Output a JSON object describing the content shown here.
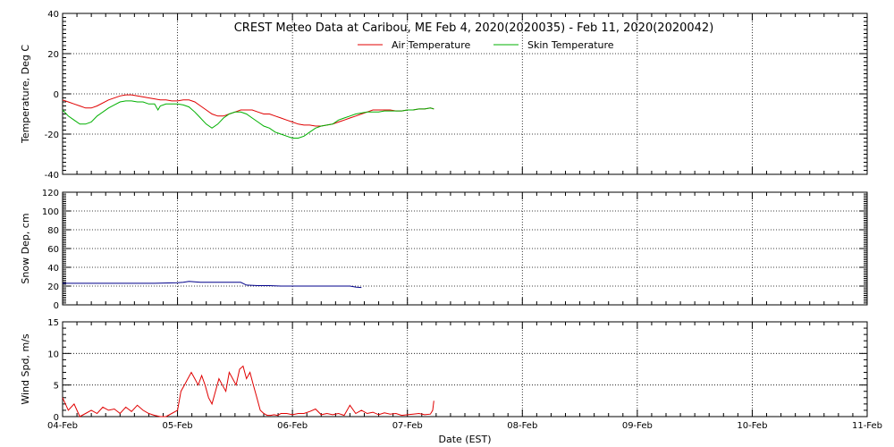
{
  "chart_data": {
    "type": "line",
    "title": "CREST Meteo Data at Caribou, ME   Feb  4, 2020(2020035) - Feb 11, 2020(2020042)",
    "xlabel": "Date (EST)",
    "x_ticks": [
      "04-Feb",
      "05-Feb",
      "06-Feb",
      "07-Feb",
      "08-Feb",
      "09-Feb",
      "10-Feb",
      "11-Feb"
    ],
    "xlim": [
      0,
      7
    ],
    "grid": true,
    "legend_position": "top-center",
    "panels": [
      {
        "ylabel": "Temperature, Deg C",
        "ylim": [
          -40,
          40
        ],
        "y_ticks": [
          -40,
          -20,
          0,
          20,
          40
        ],
        "series": [
          {
            "name": "Air Temperature",
            "color": "#e00000",
            "x": [
              0.0,
              0.05,
              0.1,
              0.15,
              0.2,
              0.25,
              0.3,
              0.4,
              0.5,
              0.55,
              0.6,
              0.65,
              0.7,
              0.75,
              0.8,
              0.85,
              0.9,
              0.95,
              1.0,
              1.05,
              1.1,
              1.15,
              1.2,
              1.25,
              1.3,
              1.35,
              1.4,
              1.45,
              1.5,
              1.55,
              1.6,
              1.65,
              1.7,
              1.75,
              1.8,
              1.85,
              1.9,
              1.95,
              2.0,
              2.05,
              2.1,
              2.15,
              2.2,
              2.25,
              2.3,
              2.35,
              2.4,
              2.45,
              2.5,
              2.55,
              2.6,
              2.65,
              2.7,
              2.75,
              2.8,
              2.85,
              2.9,
              2.95,
              3.0,
              3.05,
              3.1,
              3.15,
              3.2,
              3.23
            ],
            "values": [
              -3,
              -4,
              -5,
              -6,
              -7,
              -7,
              -6,
              -3,
              -1,
              -0.5,
              -0.5,
              -1,
              -1.5,
              -2,
              -2.5,
              -3,
              -3,
              -3.5,
              -3.5,
              -3,
              -3,
              -4,
              -6,
              -8,
              -10,
              -11,
              -11,
              -10,
              -9,
              -8,
              -8,
              -8,
              -9,
              -10,
              -10,
              -11,
              -12,
              -13,
              -14,
              -15,
              -15.5,
              -15.5,
              -16,
              -16,
              -15.5,
              -15,
              -14,
              -13,
              -12,
              -11,
              -10,
              -9,
              -8,
              -8,
              -8,
              -8,
              -8.5,
              -8.5,
              -8,
              -8,
              -7.5,
              -7.5,
              -7,
              -7.5
            ]
          },
          {
            "name": "Skin Temperature",
            "color": "#00b000",
            "x": [
              0.0,
              0.05,
              0.1,
              0.15,
              0.2,
              0.25,
              0.3,
              0.4,
              0.5,
              0.55,
              0.6,
              0.65,
              0.7,
              0.75,
              0.8,
              0.83,
              0.85,
              0.9,
              0.95,
              1.0,
              1.05,
              1.1,
              1.15,
              1.2,
              1.25,
              1.3,
              1.35,
              1.4,
              1.45,
              1.5,
              1.55,
              1.6,
              1.65,
              1.7,
              1.75,
              1.8,
              1.85,
              1.9,
              1.95,
              2.0,
              2.05,
              2.1,
              2.15,
              2.2,
              2.25,
              2.3,
              2.35,
              2.4,
              2.45,
              2.5,
              2.55,
              2.6,
              2.65,
              2.7,
              2.75,
              2.8,
              2.85,
              2.9,
              2.95,
              3.0,
              3.05,
              3.1,
              3.15,
              3.2,
              3.23
            ],
            "values": [
              -8,
              -11,
              -13,
              -15,
              -15,
              -14,
              -11,
              -7,
              -4,
              -3.5,
              -3.5,
              -4,
              -4,
              -5,
              -5,
              -8,
              -6,
              -5,
              -5,
              -5,
              -5.5,
              -6.5,
              -9,
              -12,
              -15,
              -17,
              -15,
              -12,
              -10,
              -9,
              -9,
              -10,
              -12,
              -14,
              -16,
              -17,
              -19,
              -20,
              -21,
              -22,
              -22,
              -21,
              -19,
              -17,
              -16,
              -15.5,
              -15,
              -13,
              -12,
              -11,
              -10,
              -9.5,
              -9,
              -9,
              -9,
              -8.5,
              -8.5,
              -8.5,
              -8.5,
              -8,
              -8,
              -7.5,
              -7.5,
              -7,
              -7.5
            ]
          }
        ]
      },
      {
        "ylabel": "Snow Dep, cm",
        "ylim": [
          0,
          120
        ],
        "y_ticks": [
          0,
          20,
          40,
          60,
          80,
          100,
          120
        ],
        "series": [
          {
            "color": "#00008b",
            "x": [
              0.0,
              0.2,
              0.4,
              0.6,
              0.8,
              1.0,
              1.05,
              1.1,
              1.2,
              1.3,
              1.4,
              1.5,
              1.55,
              1.6,
              1.7,
              1.8,
              1.9,
              2.0,
              2.1,
              2.2,
              2.3,
              2.4,
              2.5,
              2.55,
              2.6
            ],
            "values": [
              23,
              23,
              23,
              23,
              23,
              23.5,
              24,
              25,
              24,
              24,
              24,
              24,
              24,
              21,
              20.5,
              20.5,
              20,
              20,
              20,
              20,
              20,
              20,
              20,
              19,
              18.5
            ]
          }
        ]
      },
      {
        "ylabel": "Wind Spd, m/s",
        "ylim": [
          0,
          15
        ],
        "y_ticks": [
          0,
          5,
          10,
          15
        ],
        "series": [
          {
            "color": "#e00000",
            "x": [
              0.0,
              0.05,
              0.1,
              0.15,
              0.2,
              0.25,
              0.3,
              0.35,
              0.4,
              0.45,
              0.5,
              0.55,
              0.6,
              0.65,
              0.7,
              0.75,
              0.8,
              0.85,
              0.9,
              0.95,
              1.0,
              1.03,
              1.06,
              1.09,
              1.12,
              1.15,
              1.18,
              1.21,
              1.24,
              1.27,
              1.3,
              1.33,
              1.36,
              1.39,
              1.42,
              1.45,
              1.48,
              1.51,
              1.54,
              1.57,
              1.6,
              1.63,
              1.66,
              1.69,
              1.72,
              1.75,
              1.78,
              1.81,
              1.84,
              1.87,
              1.9,
              1.95,
              2.0,
              2.05,
              2.1,
              2.15,
              2.2,
              2.25,
              2.3,
              2.35,
              2.4,
              2.45,
              2.5,
              2.55,
              2.6,
              2.65,
              2.7,
              2.75,
              2.8,
              2.85,
              2.9,
              2.95,
              3.0,
              3.05,
              3.1,
              3.15,
              3.2,
              3.22,
              3.23
            ],
            "values": [
              3,
              1,
              2,
              0,
              0.5,
              1,
              0.5,
              1.5,
              1,
              1.2,
              0.5,
              1.5,
              0.8,
              1.8,
              1,
              0.5,
              0.2,
              0,
              0,
              0.5,
              1,
              4,
              5,
              6,
              7,
              6,
              5,
              6.5,
              5,
              3,
              2,
              4,
              6,
              5,
              4,
              7,
              6,
              5,
              7.5,
              8,
              6,
              7,
              5,
              3,
              1,
              0.5,
              0.2,
              0.2,
              0.3,
              0.2,
              0.5,
              0.5,
              0.3,
              0.5,
              0.5,
              0.8,
              1.2,
              0.3,
              0.5,
              0.3,
              0.5,
              0.2,
              1.8,
              0.5,
              1,
              0.5,
              0.7,
              0.3,
              0.6,
              0.4,
              0.5,
              0.2,
              0.3,
              0.4,
              0.5,
              0.3,
              0.4,
              1,
              2.5
            ]
          }
        ]
      }
    ]
  }
}
